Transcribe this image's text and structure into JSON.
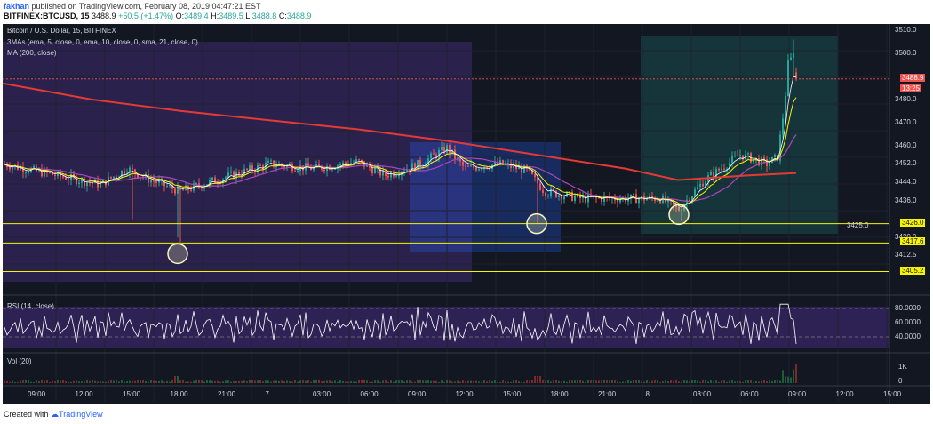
{
  "header": {
    "author": "fakhan",
    "published_text": "published on TradingView.com, February 08, 2019 04:47:21 EST",
    "symbol": "BITFINEX:BTCUSD, 15",
    "last": "3488.9",
    "change": "+50.5 (+1.47%)",
    "o_label": "O:",
    "o_value": "3489.4",
    "h_label": "H:",
    "h_value": "3489.5",
    "l_label": "L:",
    "l_value": "3488.8",
    "c_label": "C:",
    "c_value": "3488.9"
  },
  "chart": {
    "title": "Bitcoin / U.S. Dollar, 15, BITFINEX",
    "indicator_1": "3MAs (ema, 5, close, 0, ema, 10, close, 0, sma, 21, close, 0)",
    "indicator_2": "MA (200, close)",
    "price_axis": [
      "3510.0",
      "3500.0",
      "3480.0",
      "3470.0",
      "3460.0",
      "3452.0",
      "3444.0",
      "3436.0",
      "3420.0",
      "3412.5"
    ],
    "price_badges": [
      {
        "text": "3488.9",
        "bg": "#ef5350",
        "fg": "#ffffff"
      },
      {
        "text": "13:25",
        "bg": "#ef5350",
        "fg": "#ffffff"
      },
      {
        "text": "3426.0",
        "bg": "#f5f500",
        "fg": "#131722"
      },
      {
        "text": "3417.6",
        "bg": "#f5f500",
        "fg": "#131722"
      },
      {
        "text": "3405.2",
        "bg": "#f5f500",
        "fg": "#131722"
      }
    ],
    "partial_label": "3425.0",
    "rsi_label": "RSI (14, close)",
    "rsi_axis": [
      "80.0000",
      "60.0000",
      "40.0000"
    ],
    "vol_label": "Vol (20)",
    "vol_axis": [
      "1K",
      "0"
    ],
    "time_axis": [
      "09:00",
      "12:00",
      "15:00",
      "18:00",
      "21:00",
      "7",
      "03:00",
      "06:00",
      "09:00",
      "12:00",
      "15:00",
      "18:00",
      "21:00",
      "8",
      "03:00",
      "06:00",
      "09:00",
      "12:00",
      "15:00"
    ],
    "colors": {
      "background": "#131722",
      "up": "#26a69a",
      "down": "#ef5350",
      "ma200": "#e53935",
      "ema5": "#ffffff",
      "ema10": "#f5f500",
      "sma21": "#ab47bc",
      "support": "#f5f500",
      "rsi": "#ffffff"
    },
    "chart_data": {
      "type": "candlestick",
      "instrument": "Bitcoin / U.S. Dollar",
      "exchange": "BITFINEX",
      "interval": "15",
      "ylim": [
        3400,
        3512
      ],
      "last_price": 3488.9,
      "support_levels": [
        3426.0,
        3417.6,
        3405.2
      ],
      "rsi_range": [
        20,
        90
      ]
    }
  },
  "footer": {
    "created_with": "Created with",
    "brand": "TradingView",
    "logo_icon": "tradingview-cloud-icon"
  }
}
